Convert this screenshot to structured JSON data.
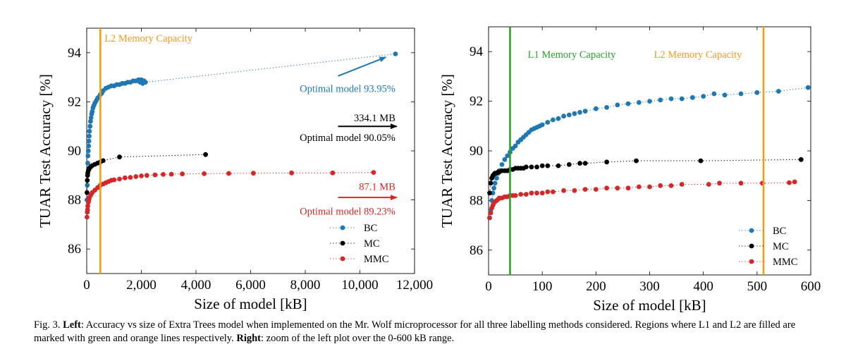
{
  "chart_data": [
    {
      "type": "scatter",
      "title": "",
      "xlabel": "Size of model [kB]",
      "ylabel": "TUAR Test Accuracy [%]",
      "xlim": [
        0,
        12000
      ],
      "ylim": [
        85,
        95
      ],
      "xticks": [
        0,
        2000,
        4000,
        6000,
        8000,
        10000,
        12000
      ],
      "xtick_labels": [
        "0",
        "2,000",
        "4,000",
        "6,000",
        "8,000",
        "10,000",
        "12,000"
      ],
      "yticks": [
        86,
        88,
        90,
        92,
        94
      ],
      "ytick_labels": [
        "86",
        "88",
        "90",
        "92",
        "94"
      ],
      "grid": false,
      "legend_position": "bottom-right",
      "vlines": [
        {
          "x": 500,
          "color": "#f39c12",
          "label": "L2 Memory Capacity",
          "label_x": 650,
          "label_y": 94.45
        }
      ],
      "annotations": [
        {
          "text": "Optimal model 93.95%",
          "x": 11300,
          "y": 92.4,
          "color": "#1f77b4"
        },
        {
          "text": "334.1 MB",
          "x": 11300,
          "y": 91.2,
          "color": "#000000"
        },
        {
          "text": "Optimal model 90.05%",
          "x": 11300,
          "y": 90.4,
          "color": "#000000"
        },
        {
          "text": "87.1 MB",
          "x": 11300,
          "y": 88.4,
          "color": "#d62728"
        },
        {
          "text": "Optimal model 89.23%",
          "x": 11300,
          "y": 87.4,
          "color": "#d62728"
        }
      ],
      "arrows": [
        {
          "from": [
            9200,
            93.05
          ],
          "to": [
            10950,
            93.82
          ],
          "color": "#1f77b4"
        },
        {
          "from": [
            9200,
            91.0
          ],
          "to": [
            11350,
            91.0
          ],
          "color": "#000000"
        },
        {
          "from": [
            9200,
            88.1
          ],
          "to": [
            11350,
            88.1
          ],
          "color": "#d62728"
        }
      ],
      "series": [
        {
          "name": "BC",
          "color": "#1f77b4",
          "x": [
            10,
            20,
            30,
            40,
            50,
            60,
            70,
            80,
            90,
            100,
            120,
            140,
            160,
            180,
            200,
            230,
            260,
            300,
            350,
            400,
            450,
            500,
            550,
            600,
            700,
            800,
            900,
            1000,
            1100,
            1200,
            1300,
            1400,
            1500,
            1600,
            1700,
            1800,
            1900,
            1950,
            2000,
            2050,
            2100,
            2150,
            11300
          ],
          "y": [
            88.0,
            88.6,
            89.0,
            89.5,
            89.8,
            90.0,
            90.2,
            90.4,
            90.6,
            90.8,
            91.0,
            91.2,
            91.35,
            91.5,
            91.6,
            91.75,
            91.85,
            91.95,
            92.05,
            92.15,
            92.2,
            92.3,
            92.35,
            92.45,
            92.55,
            92.6,
            92.65,
            92.65,
            92.7,
            92.7,
            92.75,
            92.75,
            92.8,
            92.8,
            92.85,
            92.85,
            92.9,
            92.8,
            92.9,
            92.75,
            92.85,
            92.8,
            93.95
          ]
        },
        {
          "name": "MC",
          "color": "#000000",
          "x": [
            10,
            20,
            30,
            40,
            60,
            80,
            100,
            150,
            200,
            300,
            400,
            500,
            600,
            1200,
            4350
          ],
          "y": [
            88.3,
            88.8,
            89.0,
            89.1,
            89.2,
            89.25,
            89.3,
            89.35,
            89.4,
            89.45,
            89.5,
            89.55,
            89.6,
            89.75,
            89.85
          ]
        },
        {
          "name": "MMC",
          "color": "#d62728",
          "x": [
            10,
            20,
            30,
            40,
            60,
            80,
            100,
            150,
            200,
            300,
            400,
            500,
            600,
            700,
            800,
            900,
            1000,
            1200,
            1400,
            1600,
            1800,
            2000,
            2200,
            2500,
            2800,
            3100,
            3500,
            4300,
            5200,
            6100,
            7500,
            9000,
            10500
          ],
          "y": [
            87.3,
            87.5,
            87.6,
            87.75,
            87.9,
            88.0,
            88.1,
            88.2,
            88.3,
            88.4,
            88.5,
            88.6,
            88.65,
            88.7,
            88.75,
            88.8,
            88.82,
            88.85,
            88.9,
            88.92,
            88.95,
            88.98,
            89.0,
            89.02,
            89.04,
            89.05,
            89.06,
            89.07,
            89.08,
            89.09,
            89.1,
            89.1,
            89.12
          ]
        }
      ]
    },
    {
      "type": "scatter",
      "title": "",
      "xlabel": "Size of model [kB]",
      "ylabel": "TUAR Test Accuracy [%]",
      "xlim": [
        0,
        600
      ],
      "ylim": [
        85,
        95
      ],
      "xticks": [
        0,
        100,
        200,
        300,
        400,
        500,
        600
      ],
      "xtick_labels": [
        "0",
        "100",
        "200",
        "300",
        "400",
        "500",
        "600"
      ],
      "yticks": [
        86,
        88,
        90,
        92,
        94
      ],
      "ytick_labels": [
        "86",
        "88",
        "90",
        "92",
        "94"
      ],
      "grid": false,
      "legend_position": "bottom-right",
      "vlines": [
        {
          "x": 40,
          "color": "#2ca02c",
          "label": "L1 Memory Capacity",
          "label_x": 73,
          "label_y": 93.75
        },
        {
          "x": 512,
          "color": "#f39c12",
          "label": "L2 Memory Capacity",
          "label_x": 308,
          "label_y": 93.75
        }
      ],
      "annotations": [],
      "arrows": [],
      "series": [
        {
          "name": "BC",
          "color": "#1f77b4",
          "x": [
            2,
            4,
            6,
            8,
            10,
            12,
            15,
            18,
            20,
            25,
            30,
            35,
            40,
            45,
            50,
            55,
            60,
            65,
            70,
            75,
            80,
            85,
            90,
            95,
            100,
            110,
            120,
            130,
            140,
            150,
            160,
            170,
            180,
            200,
            220,
            240,
            260,
            280,
            300,
            320,
            340,
            360,
            380,
            400,
            420,
            440,
            470,
            500,
            540,
            595
          ],
          "y": [
            87.3,
            87.6,
            88.0,
            88.3,
            88.5,
            88.7,
            88.9,
            89.1,
            89.2,
            89.45,
            89.65,
            89.8,
            89.95,
            90.1,
            90.2,
            90.35,
            90.45,
            90.55,
            90.65,
            90.75,
            90.85,
            90.9,
            90.95,
            91.0,
            91.05,
            91.15,
            91.25,
            91.3,
            91.4,
            91.45,
            91.5,
            91.55,
            91.6,
            91.7,
            91.75,
            91.85,
            91.9,
            91.95,
            92.0,
            92.05,
            92.1,
            92.1,
            92.15,
            92.2,
            92.3,
            92.25,
            92.3,
            92.35,
            92.4,
            92.55
          ]
        },
        {
          "name": "MC",
          "color": "#000000",
          "x": [
            2,
            4,
            6,
            8,
            10,
            12,
            15,
            18,
            20,
            25,
            30,
            35,
            40,
            45,
            50,
            55,
            60,
            65,
            70,
            80,
            90,
            100,
            110,
            130,
            150,
            170,
            180,
            220,
            275,
            395,
            582
          ],
          "y": [
            88.3,
            88.7,
            88.9,
            89.0,
            89.05,
            89.1,
            89.1,
            89.15,
            89.15,
            89.2,
            89.2,
            89.2,
            89.25,
            89.25,
            89.3,
            89.3,
            89.3,
            89.3,
            89.35,
            89.35,
            89.35,
            89.4,
            89.4,
            89.4,
            89.45,
            89.5,
            89.5,
            89.55,
            89.6,
            89.6,
            89.65
          ]
        },
        {
          "name": "MMC",
          "color": "#d62728",
          "x": [
            2,
            4,
            6,
            8,
            10,
            12,
            15,
            18,
            20,
            25,
            30,
            35,
            40,
            45,
            50,
            60,
            70,
            80,
            90,
            100,
            110,
            120,
            140,
            160,
            180,
            200,
            220,
            240,
            260,
            280,
            300,
            320,
            340,
            360,
            410,
            430,
            470,
            510,
            560,
            570
          ],
          "y": [
            87.3,
            87.5,
            87.7,
            87.8,
            87.9,
            87.95,
            88.0,
            88.05,
            88.1,
            88.1,
            88.15,
            88.15,
            88.2,
            88.2,
            88.2,
            88.25,
            88.25,
            88.3,
            88.3,
            88.3,
            88.35,
            88.35,
            88.4,
            88.4,
            88.45,
            88.45,
            88.5,
            88.5,
            88.5,
            88.55,
            88.55,
            88.6,
            88.6,
            88.65,
            88.65,
            88.7,
            88.7,
            88.7,
            88.72,
            88.75
          ]
        }
      ]
    }
  ],
  "caption": {
    "prefix": "Fig. 3.  ",
    "left_bold": "Left",
    "left_text": ": Accuracy vs size of Extra Trees model when implemented on the Mr. Wolf microprocessor for all three labelling methods considered. Regions where L1 and L2 are filled are marked with green and orange lines respectively. ",
    "right_bold": "Right",
    "right_text": ": zoom of the left plot over the 0-600 kB range."
  }
}
